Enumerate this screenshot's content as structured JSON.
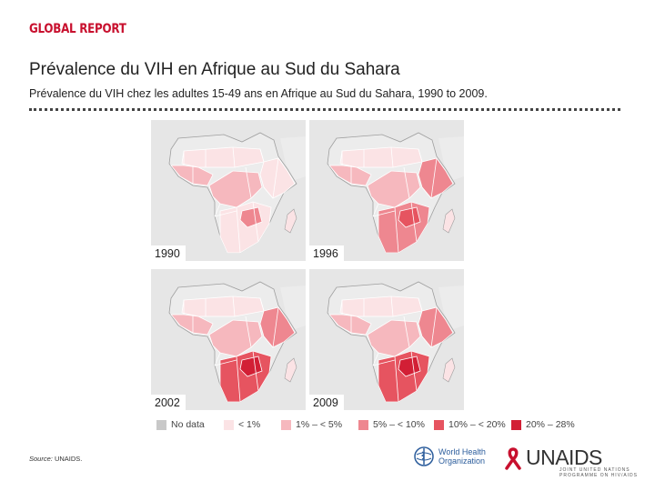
{
  "header": {
    "report_label": "GLOBAL REPORT",
    "title": "Prévalence du VIH en Afrique au Sud du Sahara",
    "subtitle": "Prévalence du VIH chez les adultes 15-49 ans en Afrique au Sud du Sahara, 1990 to 2009."
  },
  "maps": [
    {
      "year": "1990",
      "east": "<1%",
      "center": "1%-<5%",
      "south": "<1%",
      "hotspot": "5%-<10%"
    },
    {
      "year": "1996",
      "east": "5%-<10%",
      "center": "1%-<5%",
      "south": "5%-<10%",
      "hotspot": "10%-<20%"
    },
    {
      "year": "2002",
      "east": "5%-<10%",
      "center": "1%-<5%",
      "south": "10%-<20%",
      "hotspot": "20%-28%"
    },
    {
      "year": "2009",
      "east": "5%-<10%",
      "center": "1%-<5%",
      "south": "10%-<20%",
      "hotspot": "20%-28%"
    }
  ],
  "legend": {
    "items": [
      {
        "label": "No data",
        "color": "#c8c8c8"
      },
      {
        "label": "< 1%",
        "color": "#fbe3e5"
      },
      {
        "label": "1% – < 5%",
        "color": "#f6b8be"
      },
      {
        "label": "5% – < 10%",
        "color": "#ee8790"
      },
      {
        "label": "10% – < 20%",
        "color": "#e65460"
      },
      {
        "label": "20% – 28%",
        "color": "#d21f35"
      }
    ]
  },
  "footer": {
    "source_label": "Source:",
    "source_value": "UNAIDS.",
    "who_line1": "World Health",
    "who_line2": "Organization",
    "unaids_logo": "UNAIDS",
    "unaids_sub": "JOINT UNITED NATIONS PROGRAMME ON HIV/AIDS"
  },
  "colors": {
    "brand_red": "#c8102e",
    "background_land": "#ececec",
    "border": "#ffffff"
  }
}
